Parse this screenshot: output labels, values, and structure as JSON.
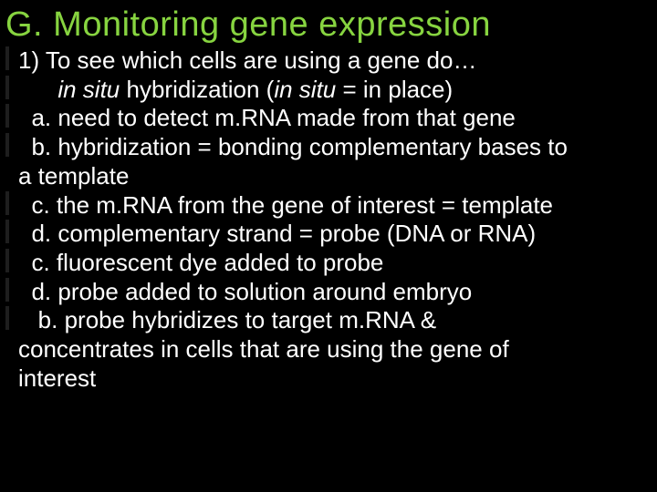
{
  "title": "G. Monitoring gene expression",
  "lines": {
    "l1_a": "1) To see which cells are using a gene do…",
    "l2_pre": "      ",
    "l2_it1": "in situ",
    "l2_mid": " hybridization   (",
    "l2_it2": "in situ",
    "l2_post": " = in place)",
    "l3": "  a. need to detect m.RNA made from that gene",
    "l4": "  b. hybridization = bonding complementary bases to",
    "l4b": "a template",
    "l5": "  c. the m.RNA from the gene of interest = template",
    "l6": "  d. complementary strand = probe (DNA or RNA)",
    "l7": "  c. fluorescent dye added to probe",
    "l8": "  d. probe added to solution around embryo",
    "l9": "   b. probe hybridizes to target m.RNA &",
    "l9b": "concentrates in cells that are using the gene of",
    "l9c": "interest"
  },
  "colors": {
    "title": "#87d440",
    "body": "#ffffff",
    "background": "#000000"
  }
}
